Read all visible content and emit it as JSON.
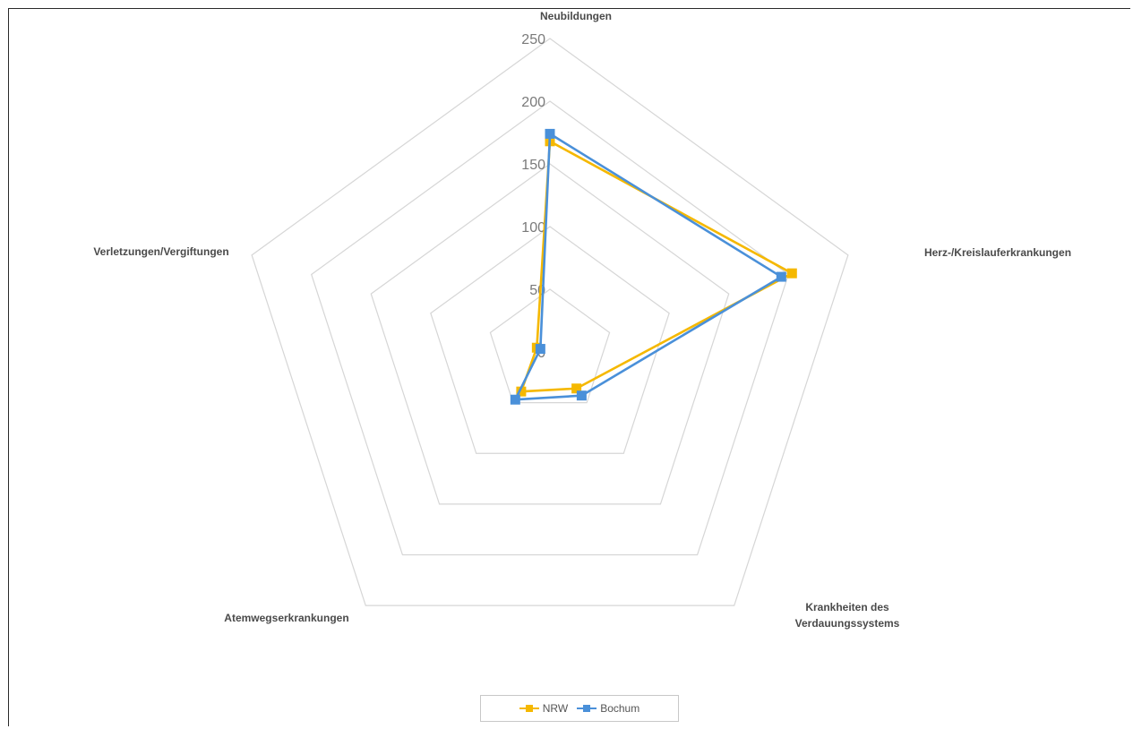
{
  "chart_data": {
    "type": "radar",
    "categories": [
      "Neubildungen",
      "Herz-/Kreislauferkrankungen",
      "Krankheiten des Verdauungssystems",
      "Atemwegserkrankungen",
      "Verletzungen/Vergiftungen"
    ],
    "series": [
      {
        "name": "NRW",
        "color": "#f5b800",
        "values": [
          168,
          203,
          36,
          39,
          11
        ]
      },
      {
        "name": "Bochum",
        "color": "#4a90d9",
        "values": [
          174,
          194,
          43,
          47,
          8
        ]
      }
    ],
    "radial_ticks": [
      "0",
      "50",
      "100",
      "150",
      "200",
      "250"
    ],
    "rmax": 250,
    "grid": true,
    "legend_position": "bottom"
  }
}
